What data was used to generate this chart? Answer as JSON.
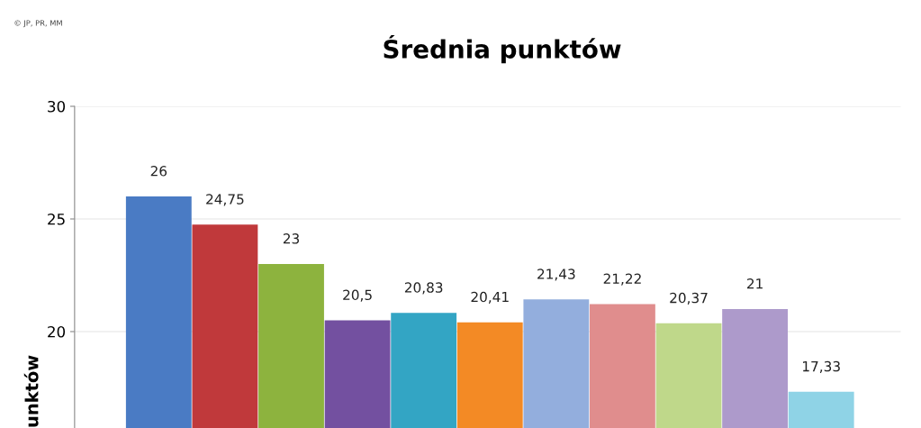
{
  "chart_data": {
    "type": "bar",
    "title": "Średnia punktów",
    "ylabel": "unktów",
    "annotations": [
      "© JP, PR, MM"
    ],
    "categories": [
      null,
      null,
      null,
      null,
      null,
      null,
      null,
      null,
      null,
      null,
      null
    ],
    "values": [
      26,
      24.75,
      23,
      20.5,
      20.83,
      20.41,
      21.43,
      21.22,
      20.37,
      21,
      17.33
    ],
    "value_labels": [
      "26",
      "24,75",
      "23",
      "20,5",
      "20,83",
      "20,41",
      "21,43",
      "21,22",
      "20,37",
      "21",
      "17,33"
    ],
    "colors": [
      "#4a7bc4",
      "#c0393b",
      "#8db33e",
      "#7350a0",
      "#33a5c4",
      "#f38a25",
      "#93aedd",
      "#e08d8d",
      "#bfd88a",
      "#ad9acb",
      "#8fd3e6"
    ],
    "ylim": [
      15.72,
      30
    ],
    "yticks": [
      20,
      25,
      30
    ],
    "grid": "y",
    "legend": false
  }
}
